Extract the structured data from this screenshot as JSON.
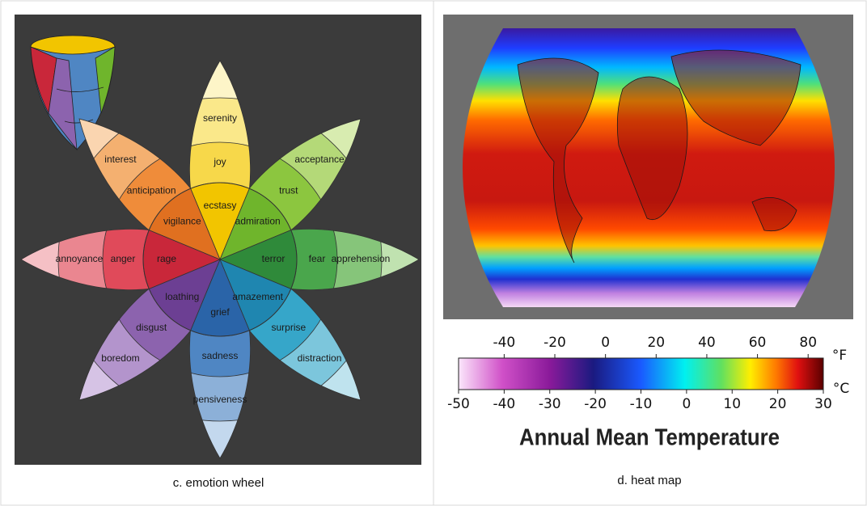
{
  "panels": [
    {
      "caption": "c. emotion wheel",
      "petals": [
        {
          "outer": "serenity",
          "middle": "joy",
          "inner": "ecstasy"
        },
        {
          "outer": "acceptance",
          "middle": "trust",
          "inner": "admiration"
        },
        {
          "outer": "apprehension",
          "middle": "fear",
          "inner": "terror"
        },
        {
          "outer": "distraction",
          "middle": "surprise",
          "inner": "amazement"
        },
        {
          "outer": "pensiveness",
          "middle": "sadness",
          "inner": "grief"
        },
        {
          "outer": "boredom",
          "middle": "disgust",
          "inner": "loathing"
        },
        {
          "outer": "annoyance",
          "middle": "anger",
          "inner": "rage"
        },
        {
          "outer": "interest",
          "middle": "anticipation",
          "inner": "vigilance"
        }
      ]
    },
    {
      "caption": "d. heat map",
      "colorbar": {
        "title": "Annual Mean Temperature",
        "fahrenheit_unit": "°F",
        "celsius_unit": "°C",
        "clim": [
          -50,
          30
        ],
        "celsius_ticks": [
          -50,
          -40,
          -30,
          -20,
          -10,
          0,
          10,
          20,
          30
        ],
        "fahrenheit_ticks": [
          -40,
          -20,
          0,
          20,
          40,
          60,
          80
        ]
      }
    }
  ]
}
